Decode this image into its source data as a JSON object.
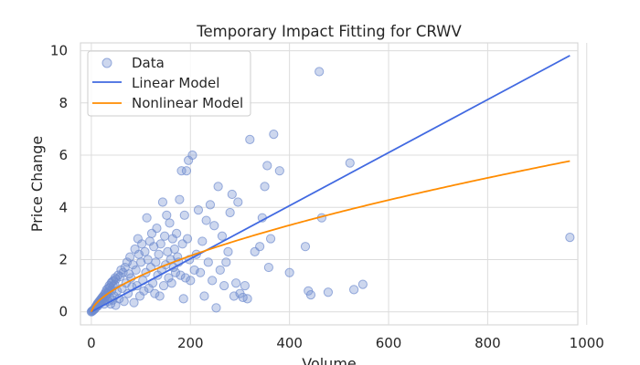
{
  "chart_data": {
    "type": "scatter",
    "title": "Temporary Impact Fitting for CRWV",
    "xlabel": "Volume",
    "ylabel": "Price Change",
    "xlim": [
      -22,
      982
    ],
    "ylim": [
      -0.5,
      10.3
    ],
    "xticks": [
      0,
      200,
      400,
      600,
      800,
      1000
    ],
    "yticks": [
      0,
      2,
      4,
      6,
      8,
      10
    ],
    "grid": true,
    "legend": {
      "placement": "top-left",
      "entries": [
        "Data",
        "Linear Model",
        "Nonlinear Model"
      ]
    },
    "colors": {
      "data": "#6f8ccf",
      "linear": "#4169e1",
      "nonlinear": "#ff8c00",
      "grid": "#dcdcdc"
    },
    "series": [
      {
        "name": "Data",
        "kind": "scatter",
        "points": [
          [
            0,
            0
          ],
          [
            1,
            0.02
          ],
          [
            2,
            0.03
          ],
          [
            3,
            0.05
          ],
          [
            4,
            0.07
          ],
          [
            5,
            0.08
          ],
          [
            6,
            0.1
          ],
          [
            7,
            0.12
          ],
          [
            8,
            0.15
          ],
          [
            9,
            0.2
          ],
          [
            10,
            0.18
          ],
          [
            11,
            0.25
          ],
          [
            12,
            0.3
          ],
          [
            13,
            0.22
          ],
          [
            14,
            0.35
          ],
          [
            15,
            0.28
          ],
          [
            16,
            0.4
          ],
          [
            17,
            0.33
          ],
          [
            18,
            0.45
          ],
          [
            19,
            0.38
          ],
          [
            20,
            0.5
          ],
          [
            21,
            0.42
          ],
          [
            22,
            0.55
          ],
          [
            23,
            0.47
          ],
          [
            24,
            0.6
          ],
          [
            25,
            0.52
          ],
          [
            26,
            0.3
          ],
          [
            27,
            0.68
          ],
          [
            28,
            0.58
          ],
          [
            29,
            0.75
          ],
          [
            30,
            0.62
          ],
          [
            31,
            0.85
          ],
          [
            32,
            0.7
          ],
          [
            33,
            0.4
          ],
          [
            34,
            0.9
          ],
          [
            35,
            0.78
          ],
          [
            36,
            1.0
          ],
          [
            37,
            0.55
          ],
          [
            38,
            0.95
          ],
          [
            39,
            0.3
          ],
          [
            40,
            1.1
          ],
          [
            41,
            0.82
          ],
          [
            42,
            1.15
          ],
          [
            43,
            0.45
          ],
          [
            44,
            0.98
          ],
          [
            45,
            1.2
          ],
          [
            46,
            0.6
          ],
          [
            47,
            1.05
          ],
          [
            48,
            1.3
          ],
          [
            49,
            0.25
          ],
          [
            50,
            1.25
          ],
          [
            52,
            0.8
          ],
          [
            54,
            1.4
          ],
          [
            56,
            0.5
          ],
          [
            58,
            1.35
          ],
          [
            60,
            1.6
          ],
          [
            62,
            0.9
          ],
          [
            64,
            1.5
          ],
          [
            66,
            0.4
          ],
          [
            68,
            1.7
          ],
          [
            70,
            1.1
          ],
          [
            72,
            1.9
          ],
          [
            74,
            0.7
          ],
          [
            76,
            1.45
          ],
          [
            78,
            2.1
          ],
          [
            80,
            1.3
          ],
          [
            82,
            0.95
          ],
          [
            84,
            1.8
          ],
          [
            86,
            0.35
          ],
          [
            88,
            2.4
          ],
          [
            90,
            1.6
          ],
          [
            92,
            1.0
          ],
          [
            94,
            2.8
          ],
          [
            96,
            2.2
          ],
          [
            98,
            0.6
          ],
          [
            100,
            1.9
          ],
          [
            102,
            2.6
          ],
          [
            104,
            1.2
          ],
          [
            106,
            0.8
          ],
          [
            108,
            2.3
          ],
          [
            110,
            1.5
          ],
          [
            112,
            3.6
          ],
          [
            114,
            2.0
          ],
          [
            116,
            0.9
          ],
          [
            118,
            2.7
          ],
          [
            120,
            1.7
          ],
          [
            122,
            3.0
          ],
          [
            124,
            1.1
          ],
          [
            126,
            2.5
          ],
          [
            128,
            0.7
          ],
          [
            130,
            1.9
          ],
          [
            132,
            3.2
          ],
          [
            134,
            1.4
          ],
          [
            136,
            2.2
          ],
          [
            138,
            0.6
          ],
          [
            140,
            2.6
          ],
          [
            142,
            1.6
          ],
          [
            144,
            4.2
          ],
          [
            146,
            1.0
          ],
          [
            148,
            2.9
          ],
          [
            150,
            1.8
          ],
          [
            152,
            3.7
          ],
          [
            154,
            2.3
          ],
          [
            156,
            1.3
          ],
          [
            158,
            3.4
          ],
          [
            160,
            2.0
          ],
          [
            162,
            1.1
          ],
          [
            164,
            2.8
          ],
          [
            166,
            1.7
          ],
          [
            168,
            2.4
          ],
          [
            170,
            1.5
          ],
          [
            172,
            3.0
          ],
          [
            174,
            2.1
          ],
          [
            176,
            1.9
          ],
          [
            178,
            4.3
          ],
          [
            180,
            1.4
          ],
          [
            182,
            5.4
          ],
          [
            184,
            2.6
          ],
          [
            186,
            0.5
          ],
          [
            188,
            3.7
          ],
          [
            190,
            1.3
          ],
          [
            192,
            5.4
          ],
          [
            194,
            2.8
          ],
          [
            196,
            5.8
          ],
          [
            198,
            2.0
          ],
          [
            200,
            1.2
          ],
          [
            204,
            6.0
          ],
          [
            208,
            1.6
          ],
          [
            212,
            2.2
          ],
          [
            216,
            3.9
          ],
          [
            220,
            1.5
          ],
          [
            224,
            2.7
          ],
          [
            228,
            0.6
          ],
          [
            232,
            3.5
          ],
          [
            236,
            1.9
          ],
          [
            240,
            4.1
          ],
          [
            244,
            1.2
          ],
          [
            248,
            3.3
          ],
          [
            252,
            0.15
          ],
          [
            256,
            4.8
          ],
          [
            260,
            1.6
          ],
          [
            264,
            2.9
          ],
          [
            268,
            1.0
          ],
          [
            272,
            1.9
          ],
          [
            276,
            2.3
          ],
          [
            280,
            3.8
          ],
          [
            284,
            4.5
          ],
          [
            288,
            0.6
          ],
          [
            292,
            1.1
          ],
          [
            296,
            4.2
          ],
          [
            300,
            0.7
          ],
          [
            306,
            0.55
          ],
          [
            310,
            1.0
          ],
          [
            315,
            0.5
          ],
          [
            320,
            6.6
          ],
          [
            330,
            2.3
          ],
          [
            340,
            2.5
          ],
          [
            345,
            3.6
          ],
          [
            350,
            4.8
          ],
          [
            355,
            5.6
          ],
          [
            358,
            1.7
          ],
          [
            362,
            2.8
          ],
          [
            368,
            6.8
          ],
          [
            380,
            5.4
          ],
          [
            400,
            1.5
          ],
          [
            432,
            2.5
          ],
          [
            438,
            0.8
          ],
          [
            443,
            0.65
          ],
          [
            460,
            9.2
          ],
          [
            465,
            3.6
          ],
          [
            478,
            0.75
          ],
          [
            522,
            5.7
          ],
          [
            530,
            0.85
          ],
          [
            548,
            1.05
          ],
          [
            966,
            2.85
          ]
        ]
      },
      {
        "name": "Linear Model",
        "kind": "line",
        "slope": 0.01016
      },
      {
        "name": "Nonlinear Model",
        "kind": "line",
        "coef": 0.0763,
        "exponent": 0.6295
      }
    ]
  }
}
